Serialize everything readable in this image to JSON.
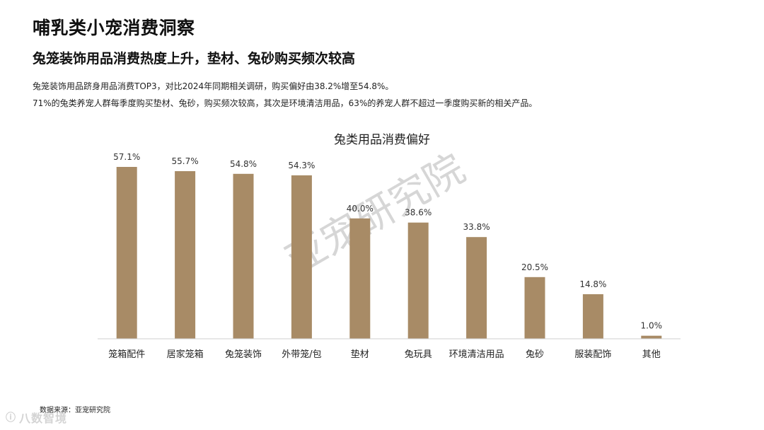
{
  "header": {
    "title": "哺乳类小宠消费洞察",
    "subtitle": "兔笼装饰用品消费热度上升，垫材、兔砂购买频次较高",
    "desc_lines": [
      "兔笼装饰用品跻身用品消费TOP3，对比2024年同期相关调研，购买偏好由38.2%增至54.8%。",
      "71%的兔类养宠人群每季度购买垫材、兔砂，购买频次较高，其次是环境清洁用品，63%的养宠人群不超过一季度购买新的相关产品。"
    ]
  },
  "chart_data": {
    "type": "bar",
    "title": "兔类用品消费偏好",
    "categories": [
      "笼箱配件",
      "居家笼箱",
      "兔笼装饰",
      "外带笼/包",
      "垫材",
      "兔玩具",
      "环境清洁用品",
      "兔砂",
      "服装配饰",
      "其他"
    ],
    "values": [
      57.1,
      55.7,
      54.8,
      54.3,
      40.0,
      38.6,
      33.8,
      20.5,
      14.8,
      1.0
    ],
    "value_labels": [
      "57.1%",
      "55.7%",
      "54.8%",
      "54.3%",
      "40.0%",
      "38.6%",
      "33.8%",
      "20.5%",
      "14.8%",
      "1.0%"
    ],
    "xlabel": "",
    "ylabel": "",
    "ylim": [
      0,
      57.1
    ],
    "grid": false,
    "bar_color": "#a88b66",
    "axis_color": "#cfcfcf"
  },
  "watermark": "亚宠研究院",
  "footer": {
    "source": "数据来源：亚宠研究院",
    "brand": "八数智境",
    "brand_logo_icon": "brand-logo-icon"
  }
}
